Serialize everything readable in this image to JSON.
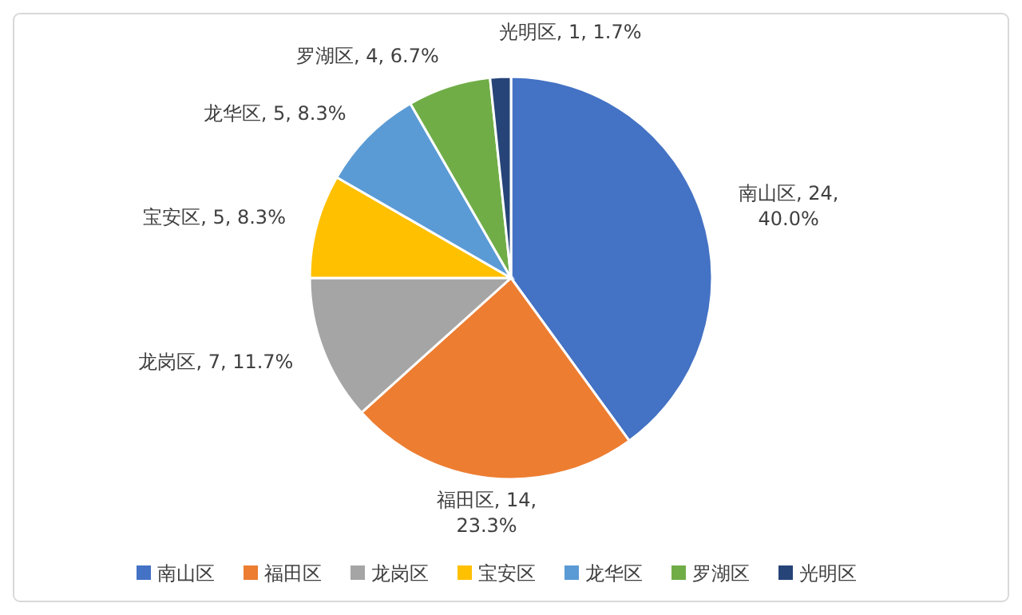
{
  "chart_data": {
    "type": "pie",
    "categories": [
      "南山区",
      "福田区",
      "龙岗区",
      "宝安区",
      "龙华区",
      "罗湖区",
      "光明区"
    ],
    "values": [
      24,
      14,
      7,
      5,
      5,
      4,
      1
    ],
    "colors": [
      "#4472c4",
      "#ed7d31",
      "#a5a5a5",
      "#ffc000",
      "#5b9bd5",
      "#70ad47",
      "#264478"
    ],
    "value_labels": [
      "南山区, 24, 40.0%",
      "福田区, 14, 23.3%",
      "龙岗区, 7, 11.7%",
      "宝安区, 5, 8.3%",
      "龙华区, 5, 8.3%",
      "罗湖区, 4, 6.7%",
      "光明区, 1, 1.7%"
    ],
    "legend": "bottom"
  }
}
